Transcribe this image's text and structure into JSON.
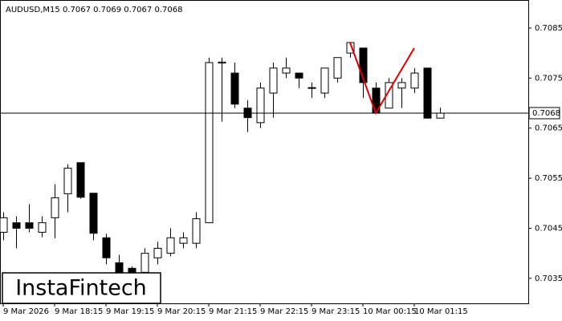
{
  "chart_data": {
    "type": "candlestick",
    "title": "AUDUSD,M15  0.7067 0.7069 0.7067 0.7068",
    "categories": [
      "9 Mar 2026",
      null,
      null,
      null,
      "9 Mar 18:15",
      null,
      null,
      null,
      "9 Mar 19:15",
      null,
      null,
      null,
      "9 Mar 20:15",
      null,
      null,
      null,
      "9 Mar 21:15",
      null,
      null,
      null,
      "9 Mar 22:15",
      null,
      null,
      null,
      "9 Mar 23:15",
      null,
      null,
      null,
      "10 Mar 00:15",
      null,
      null,
      null,
      "10 Mar 01:15",
      null,
      null
    ],
    "open": [
      0.70442,
      0.70461,
      0.70461,
      0.70442,
      0.70471,
      0.70519,
      0.70581,
      0.7052,
      0.70431,
      0.70381,
      0.7037,
      0.70362,
      0.70391,
      0.704,
      0.7042,
      0.7042,
      0.70461,
      0.7078,
      0.7076,
      0.7069,
      0.70661,
      0.7072,
      0.7076,
      0.7076,
      0.7073,
      0.7072,
      0.7075,
      0.708,
      0.7081,
      0.7073,
      0.7069,
      0.7073,
      0.7073,
      0.7077,
      0.7067
    ],
    "high": [
      0.70482,
      0.70474,
      0.70498,
      0.70474,
      0.70538,
      0.70578,
      0.70581,
      0.7052,
      0.70439,
      0.70397,
      0.70374,
      0.7041,
      0.70423,
      0.7045,
      0.70442,
      0.70482,
      0.70791,
      0.70791,
      0.70781,
      0.70706,
      0.70741,
      0.70781,
      0.70791,
      0.7076,
      0.70741,
      0.7077,
      0.70791,
      0.70821,
      0.7081,
      0.70741,
      0.7075,
      0.7075,
      0.7077,
      0.7077,
      0.70691
    ],
    "low": [
      0.70426,
      0.7041,
      0.70442,
      0.70432,
      0.7043,
      0.70482,
      0.70509,
      0.70426,
      0.70378,
      0.70354,
      0.70354,
      0.70354,
      0.70378,
      0.70394,
      0.7041,
      0.7041,
      0.70461,
      0.70663,
      0.7069,
      0.70642,
      0.7065,
      0.70671,
      0.7075,
      0.7073,
      0.7071,
      0.7071,
      0.70741,
      0.70791,
      0.7071,
      0.7068,
      0.7069,
      0.7069,
      0.7072,
      0.7067,
      0.7067
    ],
    "close": [
      0.70471,
      0.7045,
      0.7045,
      0.70461,
      0.70511,
      0.7057,
      0.70512,
      0.7044,
      0.70391,
      0.70362,
      0.70362,
      0.704,
      0.7041,
      0.70431,
      0.70431,
      0.70469,
      0.70781,
      0.70782,
      0.70698,
      0.70671,
      0.7073,
      0.7077,
      0.7077,
      0.7075,
      0.70731,
      0.7077,
      0.70791,
      0.70821,
      0.70741,
      0.7068,
      0.70741,
      0.70741,
      0.7076,
      0.7067,
      0.7068
    ],
    "ylim": [
      0.703,
      0.70906
    ],
    "yticks": [
      0.7035,
      0.7045,
      0.7055,
      0.7065,
      0.7075,
      0.7085
    ],
    "last_price": 0.7068,
    "pattern": {
      "color": "#e00000",
      "indices": [
        27,
        29,
        32
      ],
      "values": [
        0.70821,
        0.7068,
        0.7081
      ]
    },
    "logo": "InstaFintech"
  }
}
